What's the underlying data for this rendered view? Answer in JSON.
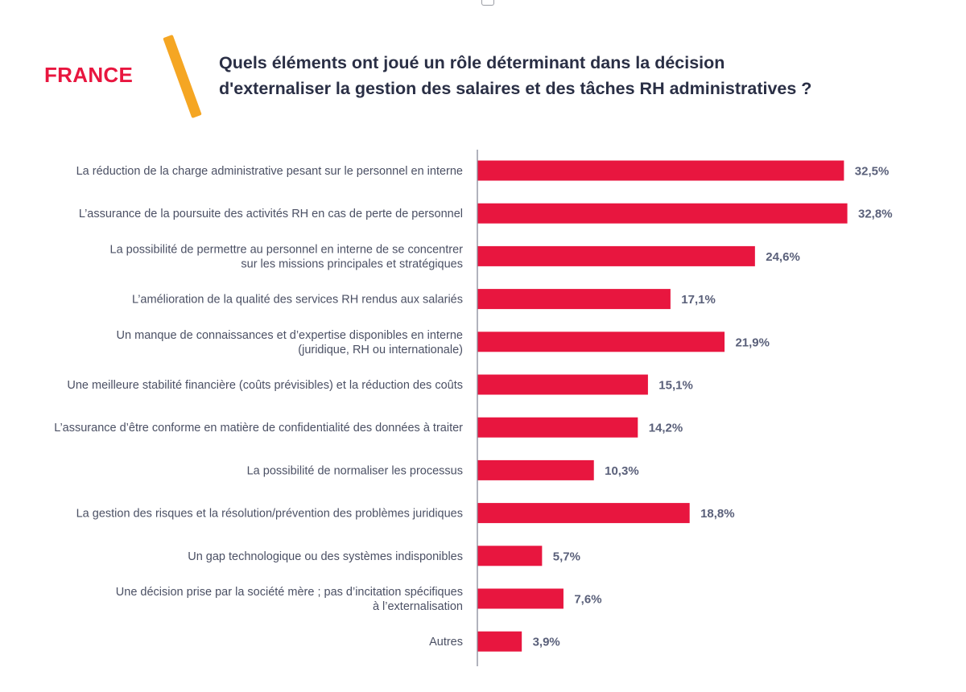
{
  "header": {
    "country": "FRANCE",
    "title_lines": [
      "Quels éléments ont joué un rôle déterminant dans la décision",
      "d'externaliser la gestion des salaires et des tâches RH administratives ?"
    ]
  },
  "colors": {
    "accent_red": "#e8163f",
    "slash_yellow": "#f5a623",
    "title_text": "#2a2f45",
    "label_text": "#4b5064",
    "value_text": "#5a607a",
    "axis": "#7d8091"
  },
  "icons": {
    "top_mark": "tray-icon"
  },
  "chart_data": {
    "type": "bar",
    "orientation": "horizontal",
    "title": "Quels éléments ont joué un rôle déterminant dans la décision d'externaliser la gestion des salaires et des tâches RH administratives ?",
    "categories": [
      [
        "La réduction de la charge administrative pesant sur le personnel en interne"
      ],
      [
        "L’assurance de la poursuite des activités RH en cas de perte de personnel"
      ],
      [
        "La possibilité de permettre au personnel en interne de se concentrer",
        "sur les missions principales et stratégiques"
      ],
      [
        "L’amélioration de la qualité des services RH rendus aux salariés"
      ],
      [
        "Un manque de connaissances et d’expertise disponibles en interne",
        "(juridique, RH ou internationale)"
      ],
      [
        "Une meilleure stabilité financière (coûts prévisibles) et la réduction des coûts"
      ],
      [
        "L’assurance d’être conforme en matière de confidentialité des données à traiter"
      ],
      [
        "La possibilité de normaliser les processus"
      ],
      [
        "La gestion des risques et la résolution/prévention des problèmes juridiques"
      ],
      [
        "Un gap technologique ou des systèmes indisponibles"
      ],
      [
        "Une décision prise par la société mère ; pas d’incitation spécifiques",
        "à l’externalisation"
      ],
      [
        "Autres"
      ]
    ],
    "values": [
      32.5,
      32.8,
      24.6,
      17.1,
      21.9,
      15.1,
      14.2,
      10.3,
      18.8,
      5.7,
      7.6,
      3.9
    ],
    "value_labels": [
      "32,5%",
      "32,8%",
      "24,6%",
      "17,1%",
      "21,9%",
      "15,1%",
      "14,2%",
      "10,3%",
      "18,8%",
      "5,7%",
      "7,6%",
      "3,9%"
    ],
    "unit": "%",
    "xlim": [
      0,
      32.8
    ],
    "grid": false,
    "legend": "none"
  }
}
